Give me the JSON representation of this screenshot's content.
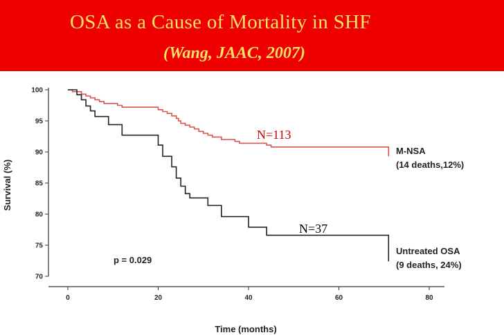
{
  "slide": {
    "title": "OSA as a Cause of Mortality in SHF",
    "subtitle": "(Wang, JAAC, 2007)"
  },
  "colors": {
    "title_bar": "#ee0000",
    "title_text": "#ffe066",
    "mnsa_series": "#d9534f",
    "osa_series": "#222222",
    "n113_label": "#cc0000",
    "n37_label": "#000000"
  },
  "chart_data": {
    "type": "line",
    "step": true,
    "xlabel": "Time (months)",
    "ylabel": "Survival (%)",
    "xlim": [
      0,
      80
    ],
    "ylim": [
      70,
      100
    ],
    "x_ticks": [
      "0",
      "20",
      "40",
      "60",
      "80"
    ],
    "y_ticks": [
      "70",
      "75",
      "80",
      "85",
      "90",
      "95",
      "100"
    ],
    "grid": false,
    "series": [
      {
        "name": "M-NSA",
        "label_lines": [
          "M-NSA",
          "(14 deaths,12%)"
        ],
        "n_label": "N=113",
        "x": [
          0,
          1,
          3,
          4,
          5,
          6,
          7,
          8,
          11,
          12,
          14,
          19,
          20,
          21,
          22,
          23,
          24,
          24.5,
          25,
          26,
          27,
          28,
          29,
          30,
          31,
          32,
          34,
          37,
          38,
          44,
          45,
          71
        ],
        "y": [
          100,
          99.7,
          99.3,
          99.0,
          98.7,
          98.4,
          98.1,
          97.8,
          97.5,
          97.2,
          97.2,
          97.2,
          96.8,
          96.5,
          96.2,
          95.8,
          95.4,
          95.0,
          94.6,
          94.3,
          94.0,
          93.7,
          93.3,
          93.0,
          92.7,
          92.4,
          92.0,
          91.7,
          91.4,
          91.1,
          90.8,
          89.3
        ]
      },
      {
        "name": "Untreated OSA",
        "label_lines": [
          "Untreated OSA",
          "(9 deaths, 24%)"
        ],
        "n_label": "N=37",
        "x": [
          0,
          2,
          3,
          4,
          5,
          6,
          9,
          12,
          19,
          20,
          21,
          23,
          24,
          25,
          26,
          27,
          31,
          34,
          40,
          44,
          71
        ],
        "y": [
          100,
          99.2,
          98.4,
          97.4,
          96.6,
          95.7,
          94.4,
          92.7,
          92.7,
          91.1,
          89.3,
          87.6,
          85.8,
          84.5,
          83.3,
          82.6,
          81.4,
          79.6,
          77.9,
          76.6,
          72.4
        ]
      }
    ],
    "annotations": [
      "p = 0.029"
    ]
  }
}
